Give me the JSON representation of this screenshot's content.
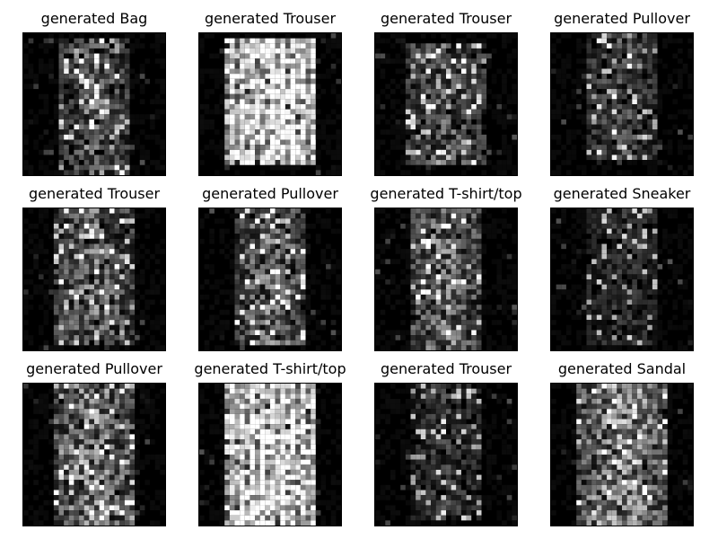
{
  "figure": {
    "panels": [
      {
        "title": "generated Bag",
        "class": "Bag"
      },
      {
        "title": "generated Trouser",
        "class": "Trouser"
      },
      {
        "title": "generated Trouser",
        "class": "Trouser"
      },
      {
        "title": "generated Pullover",
        "class": "Pullover"
      },
      {
        "title": "generated Trouser",
        "class": "Trouser"
      },
      {
        "title": "generated Pullover",
        "class": "Pullover"
      },
      {
        "title": "generated T-shirt/top",
        "class": "T-shirt/top"
      },
      {
        "title": "generated Sneaker",
        "class": "Sneaker"
      },
      {
        "title": "generated Pullover",
        "class": "Pullover"
      },
      {
        "title": "generated T-shirt/top",
        "class": "T-shirt/top"
      },
      {
        "title": "generated Trouser",
        "class": "Trouser"
      },
      {
        "title": "generated Sandal",
        "class": "Sandal"
      }
    ],
    "image_background": "#000000"
  }
}
